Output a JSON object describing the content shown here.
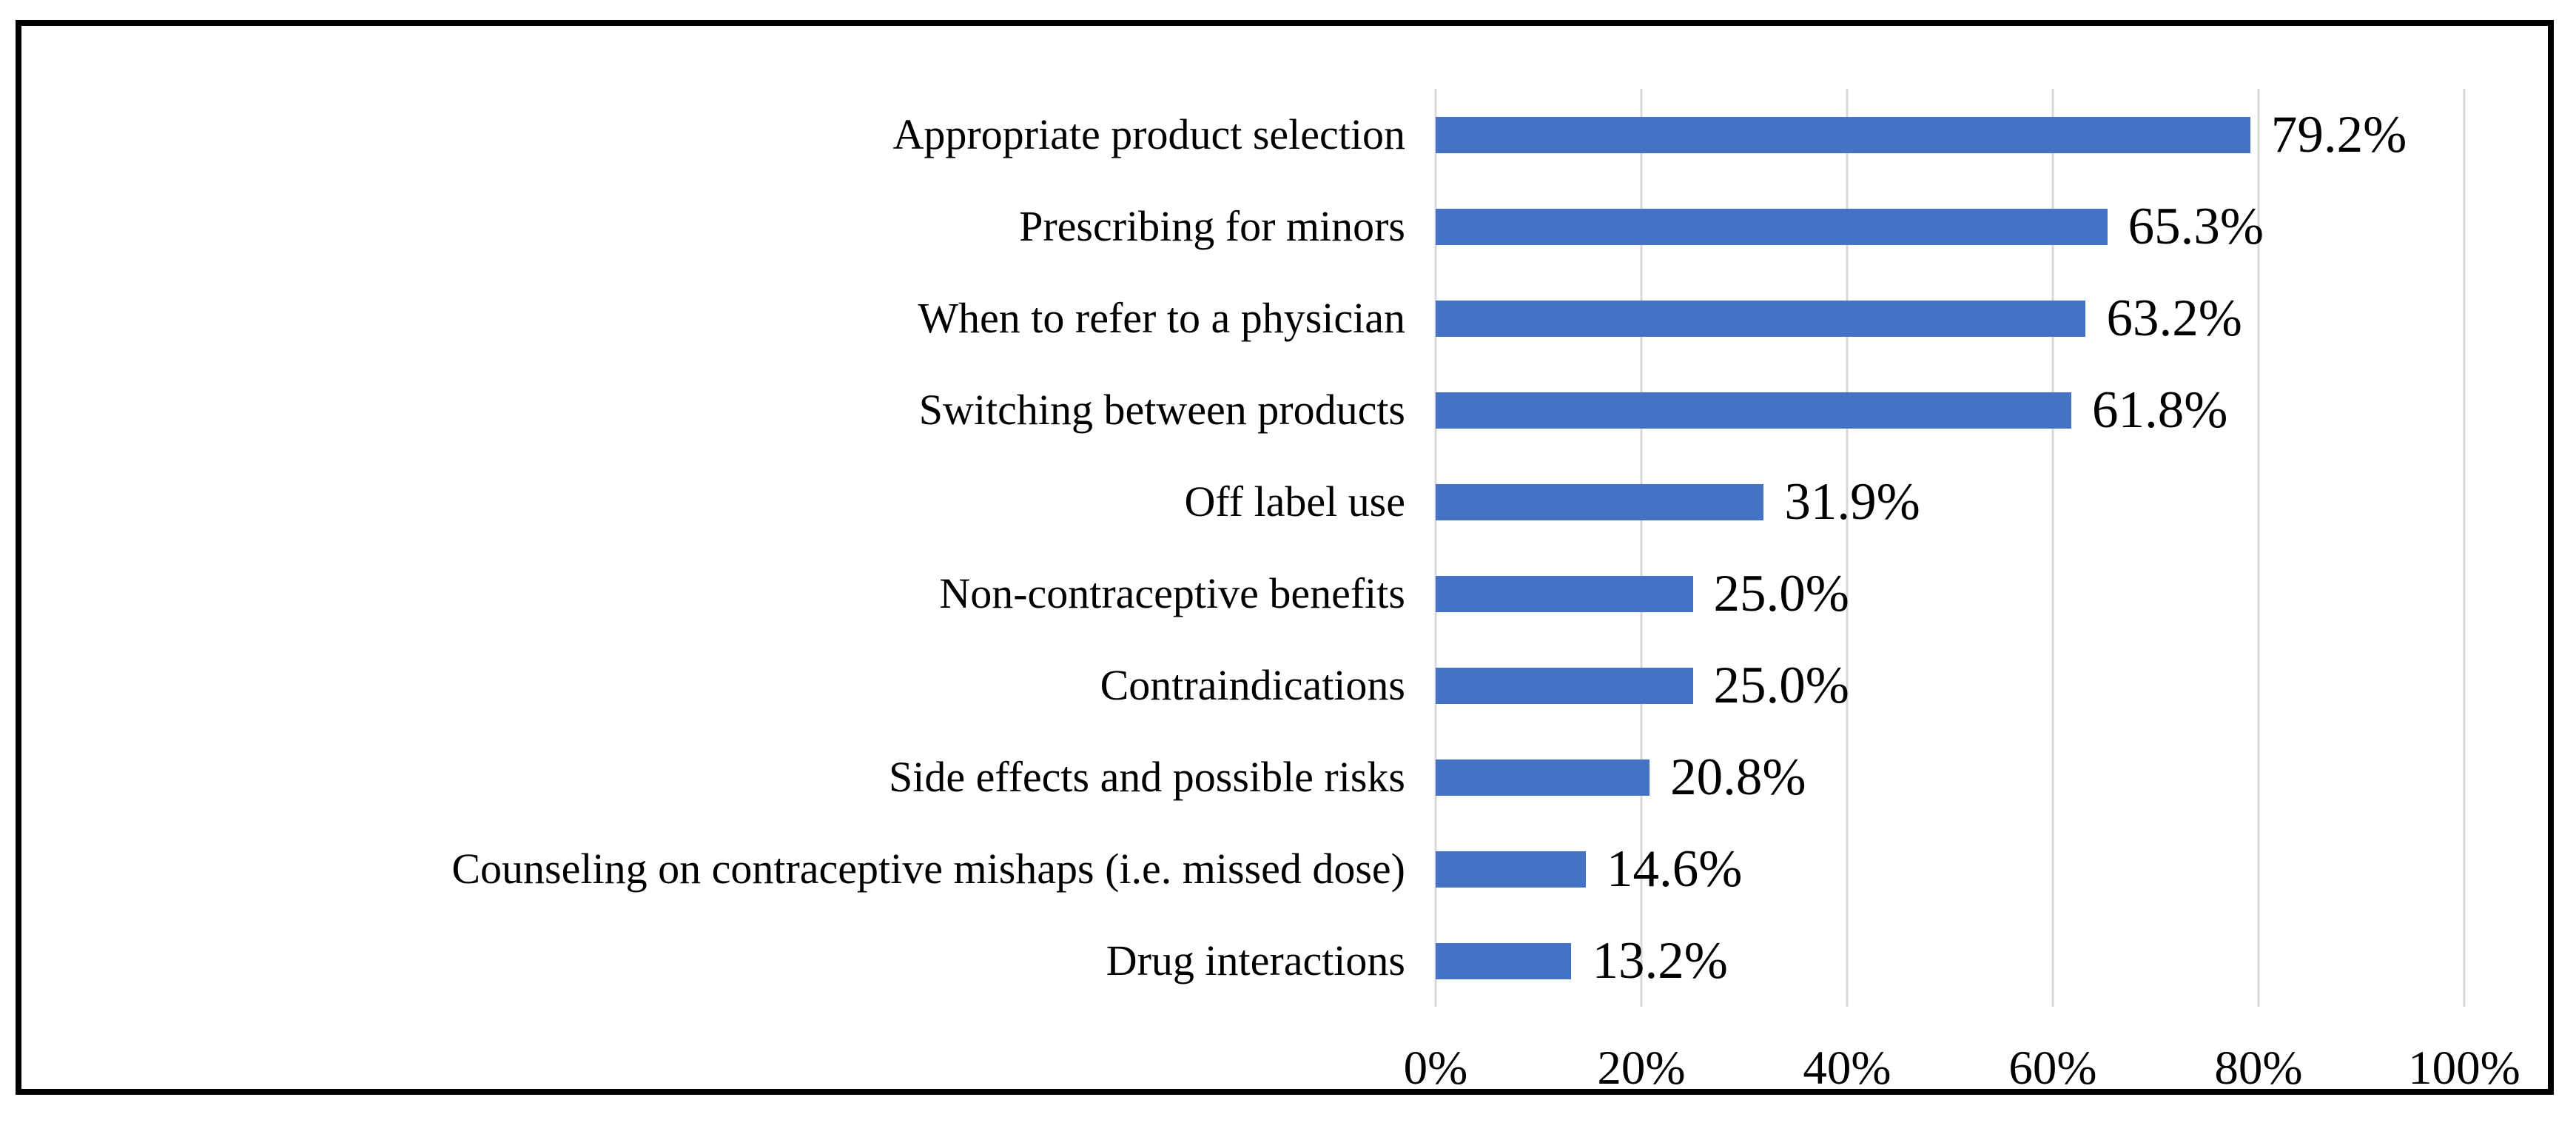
{
  "figure": {
    "border_color": "#000000",
    "background_color": "#ffffff"
  },
  "chart_data": {
    "type": "bar",
    "orientation": "horizontal",
    "title": "",
    "xlabel": "",
    "ylabel": "",
    "categories": [
      "Appropriate product selection",
      "Prescribing for minors",
      "When to refer to a physician",
      "Switching between products",
      "Off label use",
      "Non-contraceptive benefits",
      "Contraindications",
      "Side effects and possible risks",
      "Counseling on contraceptive mishaps (i.e. missed dose)",
      "Drug interactions"
    ],
    "values": [
      79.2,
      65.3,
      63.2,
      61.8,
      31.9,
      25.0,
      25.0,
      20.8,
      14.6,
      13.2
    ],
    "value_labels": [
      "79.2%",
      "65.3%",
      "63.2%",
      "61.8%",
      "31.9%",
      "25.0%",
      "25.0%",
      "20.8%",
      "14.6%",
      "13.2%"
    ],
    "xlim": [
      0,
      110
    ],
    "xticks": [
      0,
      20,
      40,
      60,
      80,
      100
    ],
    "xtick_labels": [
      "0%",
      "20%",
      "40%",
      "60%",
      "80%",
      "100%"
    ],
    "grid": true,
    "legend": "none",
    "bar_color": "#4472c4",
    "gridline_color": "#d9d9d9"
  }
}
